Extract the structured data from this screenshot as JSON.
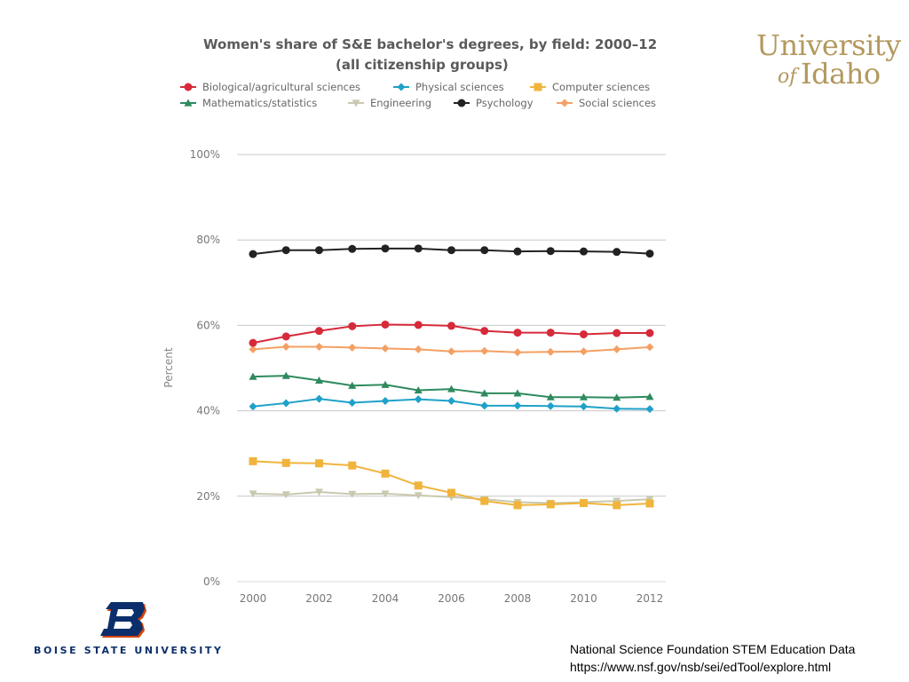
{
  "chart_data": {
    "type": "line",
    "title": "Women's share of S&E bachelor's degrees, by field: 2000–12",
    "subtitle": "(all citizenship groups)",
    "ylabel": "Percent",
    "xlabel": "",
    "ylim": [
      0,
      100
    ],
    "y_ticks": [
      "0%",
      "20%",
      "40%",
      "60%",
      "80%",
      "100%"
    ],
    "y_tick_values": [
      0,
      20,
      40,
      60,
      80,
      100
    ],
    "x_tick_labels": [
      "2000",
      "2002",
      "2004",
      "2006",
      "2008",
      "2010",
      "2012"
    ],
    "x_tick_values": [
      2000,
      2002,
      2004,
      2006,
      2008,
      2010,
      2012
    ],
    "xlim": [
      2000,
      2012
    ],
    "grid": "horizontal",
    "legend_position": "top",
    "x": [
      2000,
      2001,
      2002,
      2003,
      2004,
      2005,
      2006,
      2007,
      2008,
      2009,
      2010,
      2011,
      2012
    ],
    "series": [
      {
        "name": "Biological/agricultural sciences",
        "color": "#d62a3a",
        "marker": "circle",
        "values": [
          55.9,
          57.4,
          58.7,
          59.8,
          60.2,
          60.1,
          59.9,
          58.7,
          58.3,
          58.3,
          57.9,
          58.2,
          58.2
        ]
      },
      {
        "name": "Physical sciences",
        "color": "#1fa1c9",
        "marker": "diamond",
        "values": [
          41.0,
          41.8,
          42.8,
          41.9,
          42.3,
          42.7,
          42.3,
          41.2,
          41.2,
          41.1,
          41.0,
          40.5,
          40.4
        ]
      },
      {
        "name": "Computer sciences",
        "color": "#f0b43c",
        "marker": "square",
        "values": [
          28.2,
          27.8,
          27.7,
          27.2,
          25.3,
          22.5,
          20.8,
          18.9,
          17.9,
          18.1,
          18.4,
          17.9,
          18.3
        ]
      },
      {
        "name": "Mathematics/statistics",
        "color": "#2e8a5e",
        "marker": "triangle-up",
        "values": [
          48.0,
          48.2,
          47.1,
          45.9,
          46.1,
          44.8,
          45.1,
          44.1,
          44.1,
          43.2,
          43.2,
          43.1,
          43.3
        ]
      },
      {
        "name": "Engineering",
        "color": "#c9c9b0",
        "marker": "triangle-down",
        "values": [
          20.6,
          20.4,
          21.0,
          20.5,
          20.6,
          20.2,
          19.8,
          19.3,
          18.6,
          18.4,
          18.6,
          18.9,
          19.3
        ]
      },
      {
        "name": "Psychology",
        "color": "#222222",
        "marker": "circle",
        "values": [
          76.7,
          77.6,
          77.6,
          77.9,
          78.0,
          78.0,
          77.6,
          77.6,
          77.3,
          77.4,
          77.3,
          77.2,
          76.8
        ]
      },
      {
        "name": "Social sciences",
        "color": "#f4a064",
        "marker": "diamond",
        "values": [
          54.4,
          55.0,
          55.0,
          54.8,
          54.6,
          54.4,
          53.9,
          54.0,
          53.7,
          53.8,
          53.9,
          54.4,
          54.9
        ]
      }
    ]
  },
  "logos": {
    "university_of_idaho": {
      "line1": "University",
      "of": "of",
      "idaho": "Idaho",
      "color": "#b3985e"
    },
    "boise_state": {
      "letter": "B",
      "name": "BOISE STATE UNIVERSITY",
      "color": "#0c2f6b",
      "accent": "#d64309"
    }
  },
  "source": {
    "line1": "National Science Foundation STEM Education Data",
    "line2": "https://www.nsf.gov/nsb/sei/edTool/explore.html"
  }
}
